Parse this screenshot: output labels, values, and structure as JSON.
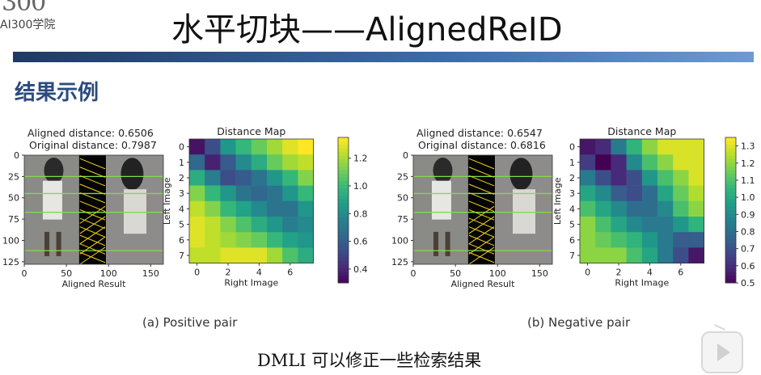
{
  "logo": {
    "big": "300",
    "small": "AI300学院"
  },
  "title": "水平切块——AlignedReID",
  "section_heading": "结果示例",
  "bottom_text": "DMLI 可以修正一些检索结果",
  "colors": {
    "accent": "#2b4b7e",
    "bar": "#2f5a90"
  },
  "chart_data": [
    {
      "type": "image",
      "panel": "positive-aligned",
      "text": [
        "Aligned distance: 0.6506",
        "Original distance: 0.7987"
      ],
      "xlabel": "Aligned Result",
      "xticks": [
        "0",
        "50",
        "100",
        "150"
      ],
      "yticks": [
        "0",
        "25",
        "50",
        "75",
        "100",
        "125"
      ]
    },
    {
      "type": "heatmap",
      "panel": "positive-map",
      "title": "Distance Map",
      "xlabel": "Right Image",
      "ylabel": "Left Image",
      "xticks": [
        "0",
        "2",
        "4",
        "6"
      ],
      "yticks": [
        "0",
        "1",
        "2",
        "3",
        "4",
        "5",
        "6",
        "7"
      ],
      "colorbar_ticks": [
        "0.4",
        "0.6",
        "0.8",
        "1.0",
        "1.2"
      ],
      "vmin": 0.3,
      "vmax": 1.35,
      "values": [
        [
          0.35,
          0.55,
          0.85,
          1.0,
          1.1,
          1.2,
          1.3,
          1.35
        ],
        [
          0.65,
          0.4,
          0.6,
          0.8,
          0.95,
          1.1,
          1.2,
          1.25
        ],
        [
          0.95,
          0.75,
          0.55,
          0.6,
          0.7,
          0.85,
          1.0,
          1.15
        ],
        [
          1.15,
          1.0,
          0.85,
          0.7,
          0.65,
          0.7,
          0.85,
          1.0
        ],
        [
          1.25,
          1.15,
          1.0,
          0.9,
          0.8,
          0.7,
          0.7,
          0.85
        ],
        [
          1.3,
          1.25,
          1.15,
          1.05,
          0.95,
          0.85,
          0.75,
          0.8
        ],
        [
          1.3,
          1.25,
          1.2,
          1.15,
          1.1,
          1.0,
          0.9,
          0.85
        ],
        [
          1.25,
          1.25,
          1.3,
          1.3,
          1.3,
          1.2,
          1.05,
          0.95
        ]
      ],
      "caption": "(a) Positive pair"
    },
    {
      "type": "image",
      "panel": "negative-aligned",
      "text": [
        "Aligned distance: 0.6547",
        "Original distance: 0.6816"
      ],
      "xlabel": "Aligned Result",
      "xticks": [
        "0",
        "50",
        "100",
        "150"
      ],
      "yticks": [
        "0",
        "25",
        "50",
        "75",
        "100",
        "125"
      ]
    },
    {
      "type": "heatmap",
      "panel": "negative-map",
      "title": "Distance Map",
      "xlabel": "Right Image",
      "ylabel": "Left Image",
      "xticks": [
        "0",
        "2",
        "4",
        "6"
      ],
      "yticks": [
        "0",
        "1",
        "2",
        "3",
        "4",
        "5",
        "6",
        "7"
      ],
      "colorbar_ticks": [
        "0.5",
        "0.6",
        "0.7",
        "0.8",
        "0.9",
        "1.0",
        "1.1",
        "1.2",
        "1.3"
      ],
      "vmin": 0.5,
      "vmax": 1.35,
      "values": [
        [
          0.55,
          0.6,
          0.85,
          1.05,
          1.2,
          1.3,
          1.3,
          1.3
        ],
        [
          0.65,
          0.5,
          0.6,
          0.9,
          1.1,
          1.2,
          1.3,
          1.3
        ],
        [
          0.85,
          0.7,
          0.6,
          0.7,
          0.95,
          1.1,
          1.2,
          1.3
        ],
        [
          1.0,
          0.9,
          0.75,
          0.7,
          0.8,
          1.0,
          1.15,
          1.25
        ],
        [
          1.1,
          1.0,
          0.9,
          0.8,
          0.8,
          0.9,
          1.1,
          1.2
        ],
        [
          1.2,
          1.1,
          1.0,
          0.9,
          0.85,
          0.85,
          0.95,
          1.05
        ],
        [
          1.2,
          1.15,
          1.1,
          1.05,
          0.95,
          0.85,
          0.75,
          0.75
        ],
        [
          1.2,
          1.2,
          1.2,
          1.1,
          1.0,
          0.85,
          0.7,
          0.55
        ]
      ],
      "caption": "(b) Negative pair"
    }
  ]
}
